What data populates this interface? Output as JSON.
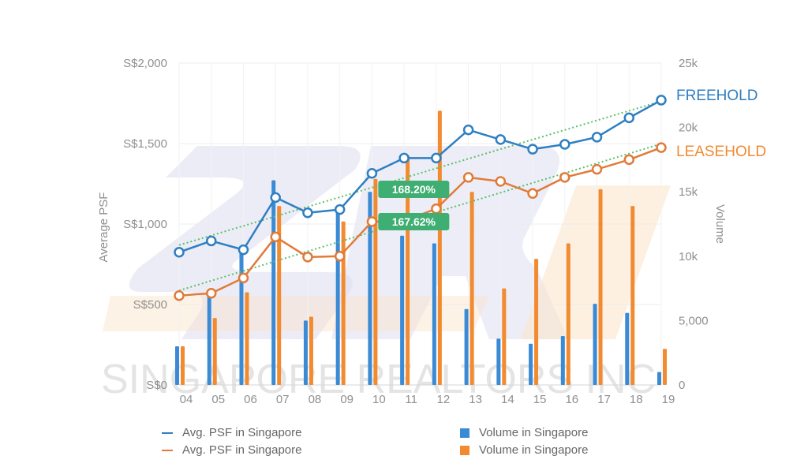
{
  "chart_data": {
    "type": "bar+line",
    "categories": [
      "04",
      "05",
      "06",
      "07",
      "08",
      "09",
      "10",
      "11",
      "12",
      "13",
      "14",
      "15",
      "16",
      "17",
      "18",
      "19"
    ],
    "y_left": {
      "label": "Average PSF",
      "range": [
        0,
        2000
      ],
      "ticks": [
        "S$0",
        "S$500",
        "S$1,000",
        "S$1,500",
        "S$2,000"
      ]
    },
    "y_right": {
      "label": "Volume",
      "range": [
        0,
        25000
      ],
      "ticks": [
        "0",
        "5,000",
        "10k",
        "15k",
        "20k",
        "25k"
      ]
    },
    "series": [
      {
        "name": "Avg. PSF in Singapore",
        "type": "line",
        "axis": "left",
        "color": "#2f7fc1",
        "end_label": "FREEHOLD",
        "values": [
          825,
          895,
          840,
          1165,
          1070,
          1090,
          1315,
          1410,
          1410,
          1585,
          1525,
          1465,
          1495,
          1540,
          1660,
          1770
        ]
      },
      {
        "name": "Avg. PSF in Singapore",
        "type": "line",
        "axis": "left",
        "color": "#e07b39",
        "end_label": "LEASEHOLD",
        "values": [
          555,
          570,
          665,
          920,
          795,
          800,
          1015,
          1020,
          1095,
          1290,
          1265,
          1190,
          1290,
          1340,
          1400,
          1475
        ]
      },
      {
        "name": "Volume in Singapore",
        "type": "bar",
        "axis": "right",
        "color": "#3a8ad6",
        "values": [
          3000,
          7000,
          10400,
          15900,
          5000,
          13500,
          15000,
          11600,
          11000,
          5900,
          3600,
          3200,
          3800,
          6300,
          5600,
          1000
        ]
      },
      {
        "name": "Volume in Singapore",
        "type": "bar",
        "axis": "right",
        "color": "#f28a30",
        "values": [
          3000,
          5200,
          7200,
          13900,
          5300,
          12700,
          16000,
          17800,
          21300,
          15000,
          7500,
          9800,
          11000,
          15200,
          13900,
          2800
        ]
      }
    ],
    "annotations": [
      {
        "text": "168.20%",
        "color": "#3fae72"
      },
      {
        "text": "167.62%",
        "color": "#3fae72"
      }
    ],
    "trendlines": {
      "style": "dotted",
      "color": "#5bbf6a"
    },
    "watermark": "SINGAPORE REALTORS INC",
    "grid": true,
    "legend_position": "bottom"
  }
}
